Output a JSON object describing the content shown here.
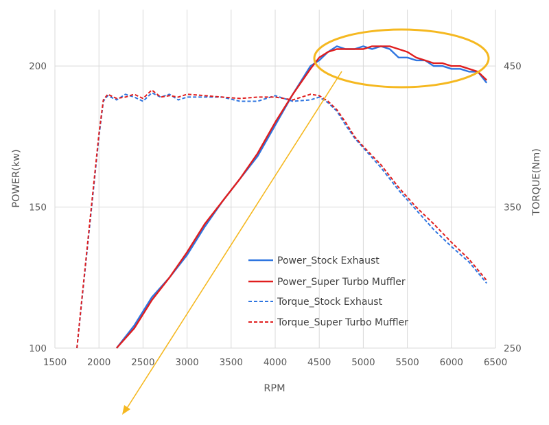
{
  "chart_data": {
    "type": "line",
    "xlabel": "RPM",
    "ylabel": "POWER(kw)",
    "y2label": "TORQUE(Nm)",
    "xlim": [
      1500,
      6500
    ],
    "ylim": [
      100,
      220
    ],
    "y2lim": [
      250,
      490
    ],
    "xticks": [
      "1500",
      "2000",
      "2500",
      "3000",
      "3500",
      "4000",
      "4500",
      "5000",
      "5500",
      "6000",
      "6500"
    ],
    "yticks": [
      "100",
      "150",
      "200"
    ],
    "y2ticks": [
      "250",
      "350",
      "450"
    ],
    "grid": true,
    "legend_position": "bottom-right",
    "colors": {
      "stock": "#2e75e0",
      "super": "#e01e1e",
      "highlight": "#f5b820"
    },
    "series": [
      {
        "name": "Power_Stock Exhaust",
        "axis": "left",
        "style": "solid",
        "color": "#2e75e0",
        "x": [
          2200,
          2400,
          2600,
          2800,
          3000,
          3200,
          3400,
          3600,
          3800,
          4000,
          4200,
          4400,
          4500,
          4600,
          4700,
          4800,
          4900,
          5000,
          5100,
          5200,
          5300,
          5400,
          5500,
          5600,
          5700,
          5800,
          5900,
          6000,
          6100,
          6200,
          6300,
          6400
        ],
        "values": [
          100,
          108,
          118,
          125,
          133,
          143,
          152,
          160,
          168,
          179,
          190,
          200,
          202,
          205,
          207,
          206,
          206,
          207,
          206,
          207,
          206,
          203,
          203,
          202,
          202,
          200,
          200,
          199,
          199,
          198,
          198,
          194
        ]
      },
      {
        "name": "Power_Super Turbo Muffler",
        "axis": "left",
        "style": "solid",
        "color": "#e01e1e",
        "x": [
          2200,
          2400,
          2600,
          2800,
          3000,
          3200,
          3400,
          3600,
          3800,
          4000,
          4200,
          4400,
          4500,
          4600,
          4700,
          4800,
          4900,
          5000,
          5100,
          5200,
          5300,
          5400,
          5500,
          5600,
          5700,
          5800,
          5900,
          6000,
          6100,
          6200,
          6300,
          6400
        ],
        "values": [
          100,
          107,
          117,
          125,
          134,
          144,
          152,
          160,
          169,
          180,
          190,
          199,
          203,
          205,
          206,
          206,
          206,
          206,
          207,
          207,
          207,
          206,
          205,
          203,
          202,
          201,
          201,
          200,
          200,
          199,
          198,
          195
        ]
      },
      {
        "name": "Torque_Stock Exhaust",
        "axis": "right",
        "style": "dashed",
        "color": "#2e75e0",
        "x": [
          1750,
          1800,
          1900,
          2000,
          2050,
          2100,
          2200,
          2300,
          2400,
          2500,
          2600,
          2700,
          2800,
          2900,
          3000,
          3200,
          3400,
          3600,
          3800,
          4000,
          4200,
          4400,
          4500,
          4600,
          4700,
          4800,
          4900,
          5000,
          5200,
          5400,
          5600,
          5800,
          6000,
          6200,
          6400
        ],
        "values": [
          250,
          280,
          340,
          400,
          425,
          429,
          426,
          430,
          428,
          425,
          431,
          428,
          430,
          426,
          428,
          428,
          428,
          425,
          425,
          429,
          425,
          426,
          428,
          424,
          418,
          408,
          399,
          392,
          378,
          362,
          348,
          334,
          322,
          311,
          296
        ]
      },
      {
        "name": "Torque_Super Turbo Muffler",
        "axis": "right",
        "style": "dashed",
        "color": "#e01e1e",
        "x": [
          1750,
          1800,
          1900,
          2000,
          2050,
          2100,
          2200,
          2300,
          2400,
          2500,
          2600,
          2700,
          2800,
          2900,
          3000,
          3200,
          3400,
          3600,
          3800,
          4000,
          4200,
          4400,
          4500,
          4600,
          4700,
          4800,
          4900,
          5000,
          5200,
          5400,
          5600,
          5800,
          6000,
          6200,
          6400
        ],
        "values": [
          250,
          281,
          342,
          402,
          426,
          430,
          427,
          428,
          430,
          427,
          433,
          428,
          429,
          428,
          430,
          429,
          428,
          427,
          428,
          428,
          426,
          430,
          429,
          425,
          419,
          410,
          400,
          393,
          380,
          364,
          350,
          338,
          325,
          313,
          298
        ]
      }
    ]
  }
}
